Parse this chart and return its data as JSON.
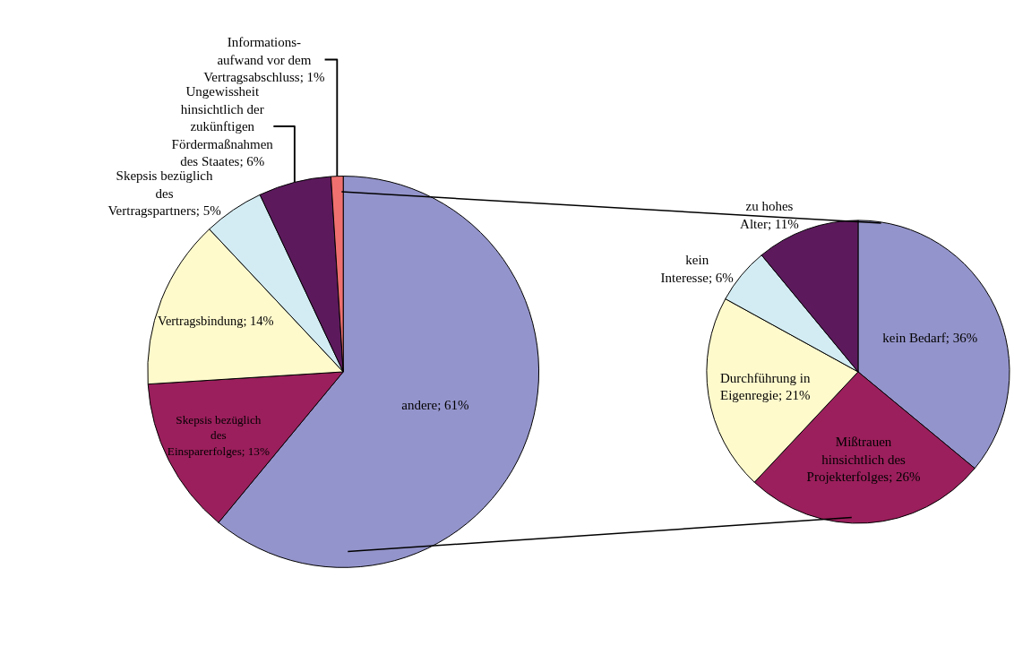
{
  "chart_data": [
    {
      "type": "pie",
      "categories": [
        "andere",
        "Skepsis bezüglich des Einsparerfolges",
        "Vertragsbindung",
        "Skepsis bezüglich des Vertragspartners",
        "Ungewissheit hinsichtlich der zukünftigen Fördermaßnahmen des Staates",
        "Informations-aufwand vor dem Vertragsabschluss"
      ],
      "values": [
        61,
        13,
        14,
        5,
        6,
        1
      ],
      "value_labels": [
        "61%",
        "13%",
        "14%",
        "5%",
        "6%",
        "1%"
      ],
      "colors": [
        "#9494cc",
        "#9b1f5c",
        "#fffacc",
        "#d3ecf3",
        "#5c1a5c",
        "#f07070"
      ]
    },
    {
      "type": "pie",
      "categories": [
        "kein Bedarf",
        "Mißtrauen hinsichtlich des Projekterfolges",
        "Durchführung in Eigenregie",
        "kein Interesse",
        "zu hohes Alter"
      ],
      "values": [
        36,
        26,
        21,
        6,
        11
      ],
      "value_labels": [
        "36%",
        "26%",
        "21%",
        "6%",
        "11%"
      ],
      "colors": [
        "#9494cc",
        "#9b1f5c",
        "#fffacc",
        "#d3ecf3",
        "#5c1a5c"
      ]
    }
  ]
}
